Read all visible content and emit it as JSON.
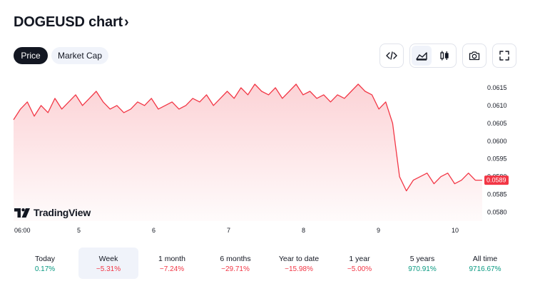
{
  "header": {
    "title": "DOGEUSD chart",
    "chevron": "›"
  },
  "tabs": [
    {
      "label": "Price",
      "active": true
    },
    {
      "label": "Market Cap",
      "active": false
    }
  ],
  "toolbar": {
    "icons": [
      "embed-code-icon",
      "area-chart-icon",
      "candlestick-icon",
      "camera-icon",
      "fullscreen-icon"
    ]
  },
  "chart_data": {
    "type": "area",
    "symbol": "DOGEUSD",
    "color": "#f23645",
    "y_ticks": [
      "0.0615",
      "0.0610",
      "0.0605",
      "0.0600",
      "0.0595",
      "0.0590",
      "0.0585",
      "0.0580"
    ],
    "ylim": [
      0.05775,
      0.0618
    ],
    "x_ticks": [
      "06:00",
      "5",
      "6",
      "7",
      "8",
      "9",
      "10"
    ],
    "current_price": "0.0589",
    "series": [
      {
        "values": [
          0.0606,
          0.0609,
          0.0611,
          0.0607,
          0.061,
          0.0608,
          0.0612,
          0.0609,
          0.0611,
          0.0613,
          0.061,
          0.0612,
          0.0614,
          0.0611,
          0.0609,
          0.061,
          0.0608,
          0.0609,
          0.0611,
          0.061,
          0.0612,
          0.0609,
          0.061,
          0.0611,
          0.0609,
          0.061,
          0.0612,
          0.0611,
          0.0613,
          0.061,
          0.0612,
          0.0614,
          0.0612,
          0.0615,
          0.0613,
          0.0616,
          0.0614,
          0.0613,
          0.0615,
          0.0612,
          0.0614,
          0.0616,
          0.0613,
          0.0614,
          0.0612,
          0.0613,
          0.0611,
          0.0613,
          0.0612,
          0.0614,
          0.0616,
          0.0614,
          0.0613,
          0.0609,
          0.0611,
          0.0605,
          0.059,
          0.0586,
          0.0589,
          0.059,
          0.0591,
          0.0588,
          0.059,
          0.0591,
          0.0588,
          0.0589,
          0.0591,
          0.0589,
          0.0589
        ]
      }
    ]
  },
  "branding": {
    "name": "TradingView"
  },
  "periods": [
    {
      "label": "Today",
      "change": "0.17%",
      "dir": "pos",
      "selected": false
    },
    {
      "label": "Week",
      "change": "−5.31%",
      "dir": "neg",
      "selected": true
    },
    {
      "label": "1 month",
      "change": "−7.24%",
      "dir": "neg",
      "selected": false
    },
    {
      "label": "6 months",
      "change": "−29.71%",
      "dir": "neg",
      "selected": false
    },
    {
      "label": "Year to date",
      "change": "−15.98%",
      "dir": "neg",
      "selected": false
    },
    {
      "label": "1 year",
      "change": "−5.00%",
      "dir": "neg",
      "selected": false
    },
    {
      "label": "5 years",
      "change": "970.91%",
      "dir": "pos",
      "selected": false
    },
    {
      "label": "All time",
      "change": "9716.67%",
      "dir": "pos",
      "selected": false
    }
  ]
}
